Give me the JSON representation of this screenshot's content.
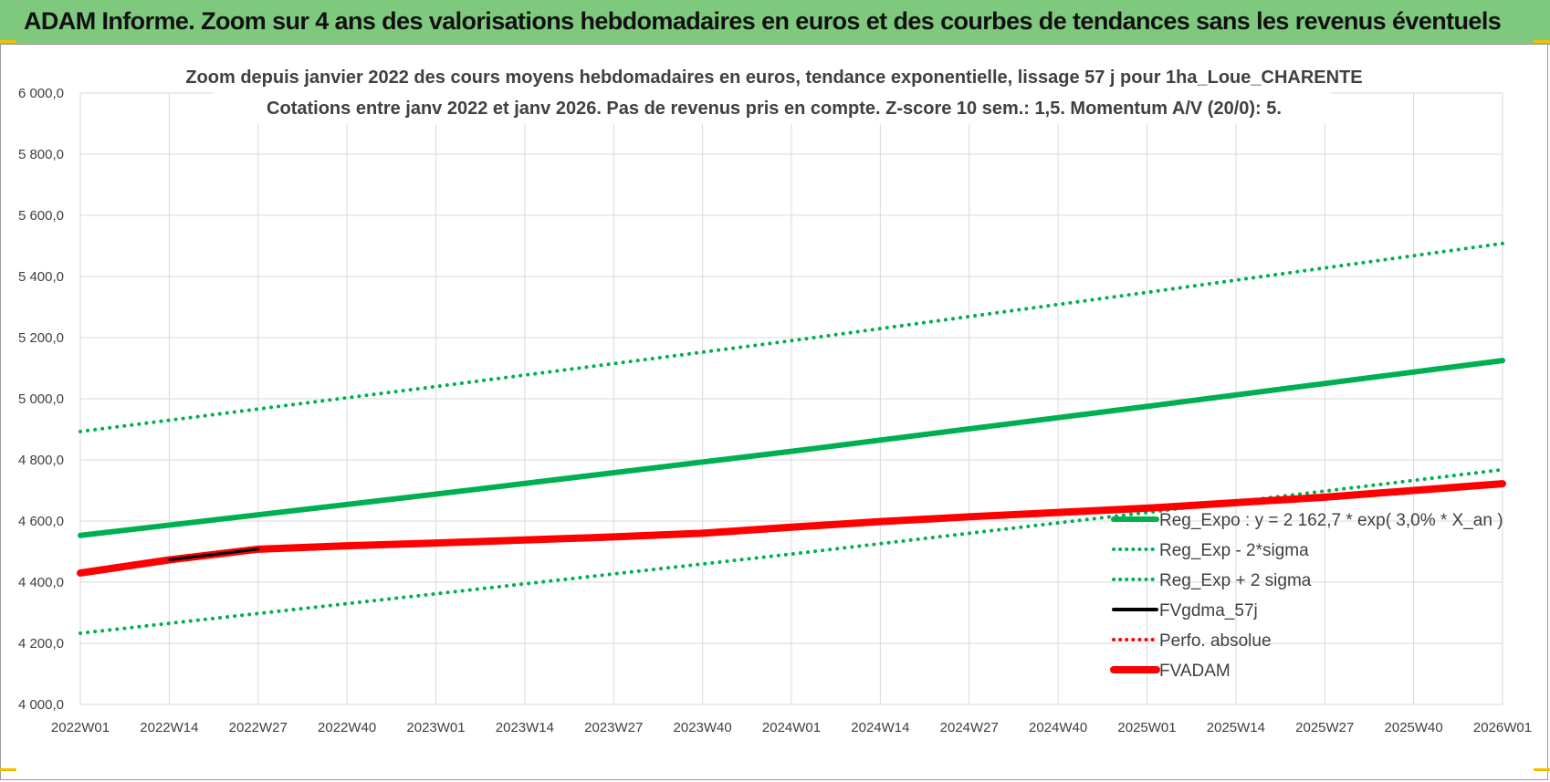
{
  "header": {
    "title": "ADAM Informe. Zoom sur 4 ans des valorisations hebdomadaires en euros et des courbes de tendances sans les revenus éventuels"
  },
  "colors": {
    "header_bg": "#7fc97f",
    "trend_green": "#00b050",
    "fvadam_red": "#ff0000",
    "fvgdma_black": "#000000",
    "grid": "#d9d9d9"
  },
  "chart_data": {
    "type": "line",
    "title": "Zoom depuis janvier 2022 des cours moyens hebdomadaires en euros, tendance exponentielle, lissage 57 j pour 1ha_Loue_CHARENTE",
    "subtitle": "Cotations entre janv 2022 et janv 2026. Pas de revenus pris en compte. Z-score 10 sem.: 1,5. Momentum A/V (20/0): 5.",
    "xlabel": "",
    "ylabel": "",
    "ylim": [
      4000,
      6000
    ],
    "yticks": [
      4000,
      4200,
      4400,
      4600,
      4800,
      5000,
      5200,
      5400,
      5600,
      5800,
      6000
    ],
    "ytick_labels": [
      "4 000,0",
      "4 200,0",
      "4 400,0",
      "4 600,0",
      "4 800,0",
      "5 000,0",
      "5 200,0",
      "5 400,0",
      "5 600,0",
      "5 800,0",
      "6 000,0"
    ],
    "x_ticks": [
      "2022W01",
      "2022W14",
      "2022W27",
      "2022W40",
      "2023W01",
      "2023W14",
      "2023W27",
      "2023W40",
      "2024W01",
      "2024W14",
      "2024W27",
      "2024W40",
      "2025W01",
      "2025W14",
      "2025W27",
      "2025W40",
      "2026W01"
    ],
    "grid": true,
    "legend_position": "bottom-right",
    "series": [
      {
        "name": "Reg_Expo : y = 2 162,7 * exp( 3,0% *  X_an )",
        "style": "solid",
        "color": "#00b050",
        "x": [
          "2022W01",
          "2023W01",
          "2024W01",
          "2025W01",
          "2026W01"
        ],
        "values": [
          4553,
          4688,
          4828,
          4975,
          5125
        ]
      },
      {
        "name": "Reg_Exp - 2*sigma",
        "style": "dotted",
        "color": "#00b050",
        "x": [
          "2022W01",
          "2023W01",
          "2024W01",
          "2025W01",
          "2026W01"
        ],
        "values": [
          4233,
          4362,
          4492,
          4628,
          4768
        ]
      },
      {
        "name": "Reg_Exp + 2 sigma",
        "style": "dotted",
        "color": "#00b050",
        "x": [
          "2022W01",
          "2023W01",
          "2024W01",
          "2025W01",
          "2026W01"
        ],
        "values": [
          4893,
          5040,
          5190,
          5348,
          5508
        ]
      },
      {
        "name": "FVgdma_57j",
        "style": "solid",
        "color": "#000000",
        "x": [
          "2022W14",
          "2022W27"
        ],
        "values": [
          4473,
          4508
        ]
      },
      {
        "name": "Perfo. absolue",
        "style": "dotted",
        "color": "#ff0000",
        "x": [],
        "values": []
      },
      {
        "name": "FVADAM",
        "style": "solid",
        "color": "#ff0000",
        "x": [
          "2022W01",
          "2022W14",
          "2022W27",
          "2022W40",
          "2023W01",
          "2023W14",
          "2023W27",
          "2023W40",
          "2024W01",
          "2024W14",
          "2024W27",
          "2024W40",
          "2025W01",
          "2025W14",
          "2025W27",
          "2025W40",
          "2026W01"
        ],
        "values": [
          4430,
          4473,
          4508,
          4519,
          4528,
          4538,
          4548,
          4560,
          4580,
          4598,
          4614,
          4628,
          4642,
          4660,
          4678,
          4700,
          4722
        ]
      }
    ]
  }
}
